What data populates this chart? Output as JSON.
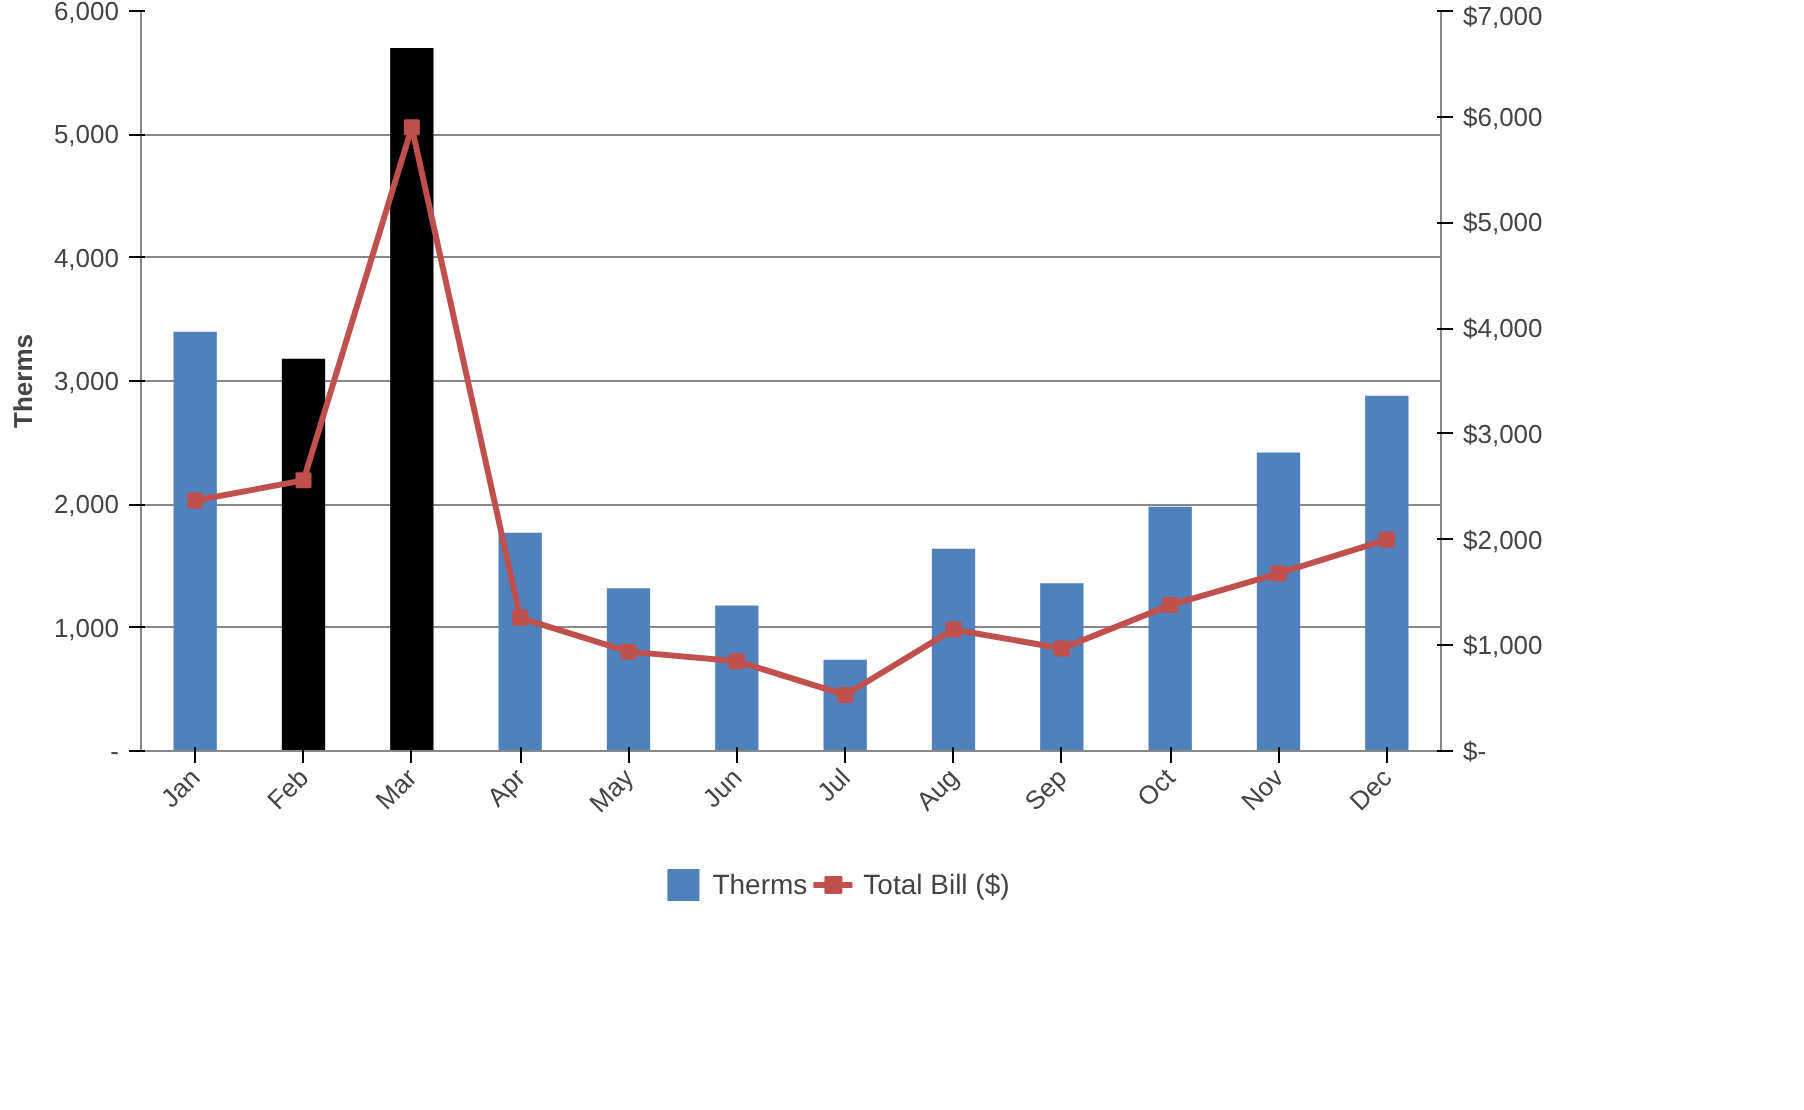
{
  "chart_data": {
    "type": "bar",
    "ylabel": "Therms",
    "categories": [
      "Jan",
      "Feb",
      "Mar",
      "Apr",
      "May",
      "Jun",
      "Jul",
      "Aug",
      "Sep",
      "Oct",
      "Nov",
      "Dec"
    ],
    "series": [
      {
        "name": "Therms",
        "color": "#4f81bd",
        "colors": [
          null,
          "#000000",
          "#000000",
          null,
          null,
          null,
          null,
          null,
          null,
          null,
          null,
          null
        ],
        "values": [
          3400,
          3180,
          5700,
          1770,
          1320,
          1180,
          740,
          1640,
          1360,
          1980,
          2420,
          2880
        ]
      },
      {
        "name": "Total Bill ($)",
        "type": "line",
        "axis": "y2",
        "color": "#c0504d",
        "marker": "square",
        "values": [
          2370,
          2560,
          5900,
          1260,
          940,
          850,
          530,
          1150,
          970,
          1380,
          1680,
          2000
        ]
      }
    ],
    "ylim": [
      0,
      6000
    ],
    "yticks": [
      {
        "value": 0,
        "label": "-"
      },
      {
        "value": 1000,
        "label": "1,000"
      },
      {
        "value": 2000,
        "label": "2,000"
      },
      {
        "value": 3000,
        "label": "3,000"
      },
      {
        "value": 4000,
        "label": "4,000"
      },
      {
        "value": 5000,
        "label": "5,000"
      },
      {
        "value": 6000,
        "label": "6,000"
      }
    ],
    "y2lim": [
      0,
      7000
    ],
    "y2ticks": [
      {
        "value": 0,
        "label": "$-"
      },
      {
        "value": 1000,
        "label": "$1,000"
      },
      {
        "value": 2000,
        "label": "$2,000"
      },
      {
        "value": 3000,
        "label": "$3,000"
      },
      {
        "value": 4000,
        "label": "$4,000"
      },
      {
        "value": 5000,
        "label": "$5,000"
      },
      {
        "value": 6000,
        "label": "$6,000"
      },
      {
        "value": 7000,
        "label": "$7,000"
      }
    ],
    "grid": "y",
    "legend": "bottom"
  }
}
